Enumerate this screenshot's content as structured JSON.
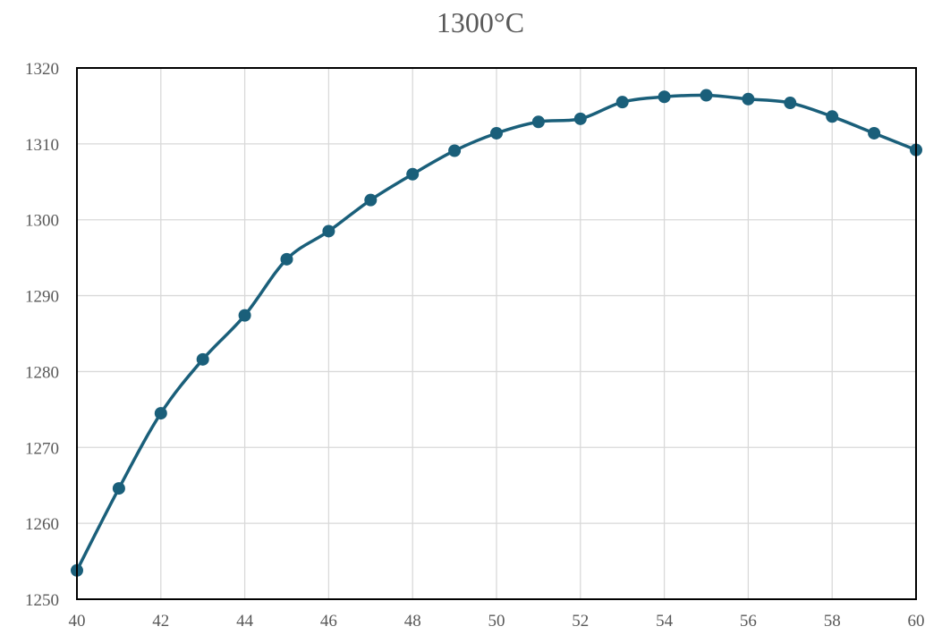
{
  "chart_data": {
    "type": "line",
    "title": "1300°C",
    "xlabel": "",
    "ylabel": "",
    "xlim": [
      40,
      60
    ],
    "ylim": [
      1250,
      1320
    ],
    "x_ticks": [
      "40",
      "42",
      "44",
      "46",
      "48",
      "50",
      "52",
      "54",
      "56",
      "58",
      "60"
    ],
    "y_ticks": [
      "1250",
      "1260",
      "1270",
      "1280",
      "1290",
      "1300",
      "1310",
      "1320"
    ],
    "grid": true,
    "legend": "none",
    "colors": {
      "series": "#1a5f7a",
      "grid": "#d9d9d9",
      "axis": "#000000",
      "text": "#595959"
    },
    "series": [
      {
        "x": [
          40,
          41,
          42,
          43,
          44,
          45,
          46,
          47,
          48,
          49,
          50,
          51,
          52,
          53,
          54,
          55,
          56,
          57,
          58,
          59,
          60
        ],
        "values": [
          1253.8,
          1264.6,
          1274.5,
          1281.6,
          1287.4,
          1294.8,
          1298.5,
          1302.6,
          1306.0,
          1309.1,
          1311.4,
          1312.9,
          1313.3,
          1315.5,
          1316.2,
          1316.4,
          1315.9,
          1315.4,
          1313.6,
          1311.4,
          1309.2
        ]
      }
    ]
  }
}
